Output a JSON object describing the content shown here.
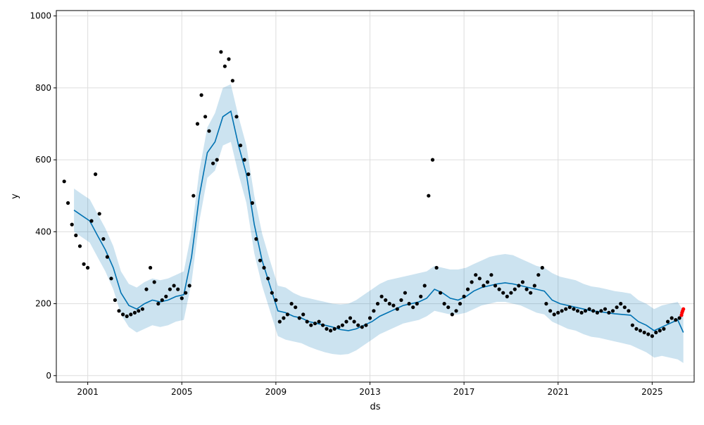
{
  "chart_data": {
    "type": "line",
    "title": "",
    "xlabel": "ds",
    "ylabel": "y",
    "xlim": [
      "1999-09-01",
      "2026-10-15"
    ],
    "ylim": [
      -18,
      1015
    ],
    "grid": true,
    "x_ticks": [
      "2001",
      "2005",
      "2009",
      "2013",
      "2017",
      "2021",
      "2025"
    ],
    "y_ticks": [
      0,
      200,
      400,
      600,
      800,
      1000
    ],
    "colors": {
      "observed": "#000000",
      "forecast_line": "#0072b2",
      "uncertainty": "#0072b2",
      "recent": "#ff0000",
      "grid": "#dddddd"
    },
    "forecast": {
      "dates": [
        "2000-06-01",
        "2000-10-01",
        "2001-02-01",
        "2001-06-01",
        "2001-10-01",
        "2002-02-01",
        "2002-06-01",
        "2002-10-01",
        "2003-02-01",
        "2003-06-01",
        "2003-10-01",
        "2004-02-01",
        "2004-06-01",
        "2004-10-01",
        "2005-02-01",
        "2005-06-01",
        "2005-10-01",
        "2006-02-01",
        "2006-06-01",
        "2006-10-01",
        "2007-02-01",
        "2007-06-01",
        "2007-10-01",
        "2008-02-01",
        "2008-06-01",
        "2008-10-01",
        "2009-02-01",
        "2009-06-01",
        "2009-10-01",
        "2010-02-01",
        "2010-06-01",
        "2010-10-01",
        "2011-02-01",
        "2011-06-01",
        "2011-10-01",
        "2012-02-01",
        "2012-06-01",
        "2012-10-01",
        "2013-02-01",
        "2013-06-01",
        "2013-10-01",
        "2014-02-01",
        "2014-06-01",
        "2014-10-01",
        "2015-02-01",
        "2015-06-01",
        "2015-10-01",
        "2016-02-01",
        "2016-06-01",
        "2016-10-01",
        "2017-02-01",
        "2017-06-01",
        "2017-10-01",
        "2018-02-01",
        "2018-06-01",
        "2018-10-01",
        "2019-02-01",
        "2019-06-01",
        "2019-10-01",
        "2020-02-01",
        "2020-06-01",
        "2020-10-01",
        "2021-02-01",
        "2021-06-01",
        "2021-10-01",
        "2022-02-01",
        "2022-06-01",
        "2022-10-01",
        "2023-02-01",
        "2023-06-01",
        "2023-10-01",
        "2024-02-01",
        "2024-06-01",
        "2024-10-01",
        "2025-02-01",
        "2025-06-01",
        "2025-10-01",
        "2026-02-01",
        "2026-05-01"
      ],
      "yhat": [
        460,
        445,
        430,
        390,
        350,
        300,
        230,
        195,
        185,
        200,
        210,
        205,
        210,
        220,
        225,
        330,
        500,
        620,
        650,
        720,
        735,
        640,
        560,
        420,
        320,
        250,
        180,
        175,
        165,
        160,
        150,
        145,
        140,
        135,
        128,
        125,
        130,
        140,
        150,
        165,
        175,
        185,
        195,
        200,
        205,
        215,
        240,
        230,
        215,
        210,
        220,
        235,
        245,
        250,
        255,
        258,
        255,
        250,
        245,
        240,
        235,
        210,
        200,
        195,
        190,
        185,
        180,
        178,
        175,
        172,
        170,
        168,
        150,
        140,
        125,
        135,
        145,
        155,
        120
      ],
      "upper": [
        520,
        505,
        490,
        450,
        410,
        360,
        290,
        255,
        245,
        260,
        270,
        265,
        270,
        280,
        290,
        400,
        570,
        690,
        730,
        800,
        810,
        720,
        640,
        500,
        395,
        320,
        250,
        245,
        230,
        220,
        215,
        210,
        205,
        200,
        198,
        200,
        210,
        225,
        240,
        255,
        265,
        270,
        275,
        280,
        285,
        290,
        305,
        300,
        295,
        295,
        300,
        310,
        320,
        330,
        335,
        338,
        335,
        325,
        315,
        305,
        300,
        285,
        275,
        270,
        265,
        255,
        248,
        245,
        240,
        235,
        232,
        228,
        210,
        200,
        185,
        195,
        200,
        205,
        180
      ],
      "lower": [
        400,
        385,
        370,
        330,
        290,
        240,
        170,
        135,
        120,
        130,
        140,
        135,
        140,
        150,
        155,
        260,
        430,
        550,
        570,
        640,
        650,
        560,
        480,
        340,
        250,
        180,
        110,
        100,
        95,
        90,
        80,
        72,
        65,
        60,
        58,
        60,
        70,
        85,
        100,
        115,
        125,
        135,
        145,
        150,
        155,
        165,
        180,
        175,
        170,
        170,
        175,
        185,
        195,
        200,
        205,
        205,
        200,
        195,
        185,
        175,
        170,
        150,
        140,
        130,
        125,
        115,
        108,
        105,
        100,
        95,
        90,
        85,
        75,
        65,
        50,
        55,
        50,
        45,
        35
      ]
    },
    "observed": {
      "dates": [
        "2000-01-01",
        "2000-03-01",
        "2000-05-01",
        "2000-07-01",
        "2000-09-01",
        "2000-11-01",
        "2001-01-01",
        "2001-03-01",
        "2001-05-01",
        "2001-07-01",
        "2001-09-01",
        "2001-11-01",
        "2002-01-01",
        "2002-03-01",
        "2002-05-01",
        "2002-07-01",
        "2002-09-01",
        "2002-11-01",
        "2003-01-01",
        "2003-03-01",
        "2003-05-01",
        "2003-07-01",
        "2003-09-01",
        "2003-11-01",
        "2004-01-01",
        "2004-03-01",
        "2004-05-01",
        "2004-07-01",
        "2004-09-01",
        "2004-11-01",
        "2005-01-01",
        "2005-03-01",
        "2005-05-01",
        "2005-07-01",
        "2005-09-01",
        "2005-11-01",
        "2006-01-01",
        "2006-03-01",
        "2006-05-01",
        "2006-07-01",
        "2006-09-01",
        "2006-11-01",
        "2007-01-01",
        "2007-03-01",
        "2007-05-01",
        "2007-07-01",
        "2007-09-01",
        "2007-11-01",
        "2008-01-01",
        "2008-03-01",
        "2008-05-01",
        "2008-07-01",
        "2008-09-01",
        "2008-11-01",
        "2009-01-01",
        "2009-03-01",
        "2009-05-01",
        "2009-07-01",
        "2009-09-01",
        "2009-11-01",
        "2010-01-01",
        "2010-03-01",
        "2010-05-01",
        "2010-07-01",
        "2010-09-01",
        "2010-11-01",
        "2011-01-01",
        "2011-03-01",
        "2011-05-01",
        "2011-07-01",
        "2011-09-01",
        "2011-11-01",
        "2012-01-01",
        "2012-03-01",
        "2012-05-01",
        "2012-07-01",
        "2012-09-01",
        "2012-11-01",
        "2013-01-01",
        "2013-03-01",
        "2013-05-01",
        "2013-07-01",
        "2013-09-01",
        "2013-11-01",
        "2014-01-01",
        "2014-03-01",
        "2014-05-01",
        "2014-07-01",
        "2014-09-01",
        "2014-11-01",
        "2015-01-01",
        "2015-03-01",
        "2015-05-01",
        "2015-07-01",
        "2015-09-01",
        "2015-11-01",
        "2016-01-01",
        "2016-03-01",
        "2016-05-01",
        "2016-07-01",
        "2016-09-01",
        "2016-11-01",
        "2017-01-01",
        "2017-03-01",
        "2017-05-01",
        "2017-07-01",
        "2017-09-01",
        "2017-11-01",
        "2018-01-01",
        "2018-03-01",
        "2018-05-01",
        "2018-07-01",
        "2018-09-01",
        "2018-11-01",
        "2019-01-01",
        "2019-03-01",
        "2019-05-01",
        "2019-07-01",
        "2019-09-01",
        "2019-11-01",
        "2020-01-01",
        "2020-03-01",
        "2020-05-01",
        "2020-07-01",
        "2020-09-01",
        "2020-11-01",
        "2021-01-01",
        "2021-03-01",
        "2021-05-01",
        "2021-07-01",
        "2021-09-01",
        "2021-11-01",
        "2022-01-01",
        "2022-03-01",
        "2022-05-01",
        "2022-07-01",
        "2022-09-01",
        "2022-11-01",
        "2023-01-01",
        "2023-03-01",
        "2023-05-01",
        "2023-07-01",
        "2023-09-01",
        "2023-11-01",
        "2024-01-01",
        "2024-03-01",
        "2024-05-01",
        "2024-07-01",
        "2024-09-01",
        "2024-11-01",
        "2025-01-01",
        "2025-03-01",
        "2025-05-01",
        "2025-07-01",
        "2025-09-01",
        "2025-11-01",
        "2026-01-01",
        "2026-03-01"
      ],
      "y": [
        540,
        480,
        420,
        390,
        360,
        310,
        300,
        430,
        560,
        450,
        380,
        330,
        270,
        210,
        180,
        170,
        165,
        170,
        175,
        180,
        185,
        240,
        300,
        260,
        200,
        210,
        220,
        240,
        250,
        240,
        215,
        230,
        250,
        500,
        700,
        780,
        720,
        680,
        590,
        600,
        900,
        860,
        880,
        820,
        720,
        640,
        600,
        560,
        480,
        380,
        320,
        300,
        270,
        230,
        210,
        150,
        160,
        170,
        200,
        190,
        160,
        170,
        150,
        140,
        145,
        150,
        140,
        130,
        125,
        130,
        135,
        140,
        150,
        160,
        150,
        140,
        135,
        140,
        160,
        180,
        200,
        220,
        210,
        200,
        195,
        185,
        210,
        230,
        200,
        190,
        200,
        220,
        250,
        500,
        600,
        300,
        230,
        200,
        190,
        170,
        180,
        200,
        220,
        240,
        260,
        280,
        270,
        250,
        260,
        280,
        250,
        240,
        230,
        220,
        230,
        240,
        250,
        260,
        240,
        230,
        250,
        280,
        300,
        200,
        180,
        170,
        175,
        180,
        185,
        190,
        185,
        180,
        175,
        180,
        185,
        180,
        175,
        180,
        185,
        175,
        180,
        190,
        200,
        190,
        180,
        140,
        130,
        125,
        120,
        115,
        110,
        120,
        125,
        130,
        150,
        160,
        155,
        160
      ]
    },
    "recent": {
      "dates": [
        "2026-04-01",
        "2026-04-10",
        "2026-04-20",
        "2026-05-01"
      ],
      "y": [
        168,
        175,
        180,
        185
      ]
    }
  }
}
